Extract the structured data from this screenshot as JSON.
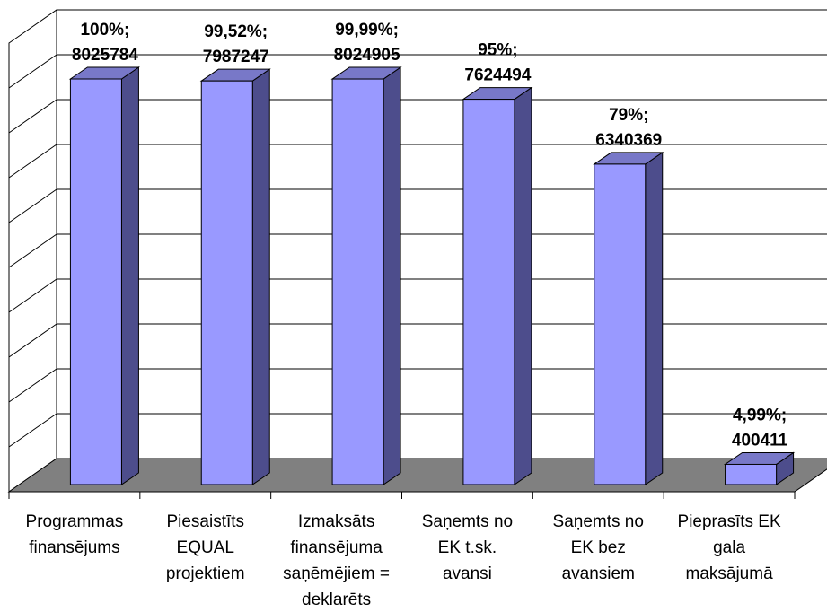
{
  "chart_data": {
    "type": "bar",
    "style": "3d-column",
    "categories": [
      [
        "Programmas",
        "finansējums"
      ],
      [
        "Piesaistīts",
        "EQUAL",
        "projektiem"
      ],
      [
        "Izmaksāts",
        "finansējuma",
        "saņēmējiem =",
        "deklarēts"
      ],
      [
        "Saņemts no",
        "EK t.sk.",
        "avansi"
      ],
      [
        "Saņemts no",
        "EK bez",
        "avansiem"
      ],
      [
        "Pieprasīts EK",
        "gala",
        "maksājumā"
      ]
    ],
    "values": [
      8025784,
      7987247,
      8024905,
      7624494,
      6340369,
      400411
    ],
    "percent_labels": [
      "100%;",
      "99,52%;",
      "99,99%;",
      "95%;",
      "79%;",
      "4,99%;"
    ],
    "value_labels": [
      "8025784",
      "7987247",
      "8024905",
      "7624494",
      "6340369",
      "400411"
    ],
    "ylim": [
      0,
      9000000
    ],
    "grid": true,
    "colors": {
      "bar_front": "#9999FF",
      "bar_side": "#4D4D8C",
      "bar_top": "#7878C8",
      "floor": "#808080",
      "wall": "#FFFFFF",
      "grid": "#000000"
    }
  }
}
